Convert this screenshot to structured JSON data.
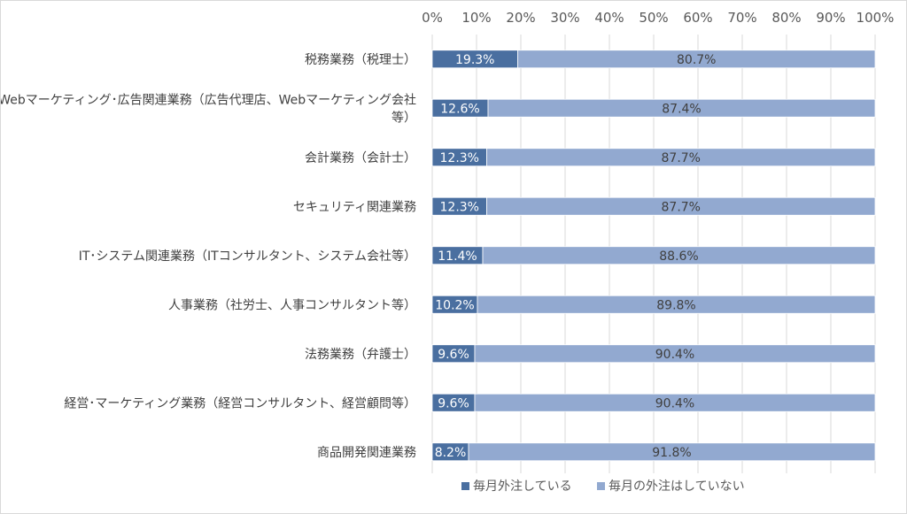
{
  "chart_data": {
    "type": "bar",
    "orientation": "horizontal",
    "stacked": "percent",
    "categories": [
      "税務業務（税理士）",
      "Webマーケティング･広告関連業務（広告代理店、Webマーケティング会社等）",
      "会計業務（会計士）",
      "セキュリティ関連業務",
      "IT･システム関連業務（ITコンサルタント、システム会社等）",
      "人事業務（社労士、人事コンサルタント等）",
      "法務業務（弁護士）",
      "経営･マーケティング業務（経営コンサルタント、経営顧問等）",
      "商品開発関連業務"
    ],
    "category_lines": [
      [
        "税務業務（税理士）"
      ],
      [
        "Webマーケティング･広告関連業務（広告代理店、Webマーケティング会社",
        "等）"
      ],
      [
        "会計業務（会計士）"
      ],
      [
        "セキュリティ関連業務"
      ],
      [
        "IT･システム関連業務（ITコンサルタント、システム会社等）"
      ],
      [
        "人事業務（社労士、人事コンサルタント等）"
      ],
      [
        "法務業務（弁護士）"
      ],
      [
        "経営･マーケティング業務（経営コンサルタント、経営顧問等）"
      ],
      [
        "商品開発関連業務"
      ]
    ],
    "series": [
      {
        "name": "毎月外注している",
        "color": "#4a6fa0",
        "values": [
          19.3,
          12.6,
          12.3,
          12.3,
          11.4,
          10.2,
          9.6,
          9.6,
          8.2
        ],
        "labels": [
          "19.3%",
          "12.6%",
          "12.3%",
          "12.3%",
          "11.4%",
          "10.2%",
          "9.6%",
          "9.6%",
          "8.2%"
        ],
        "label_color": "#ffffff"
      },
      {
        "name": "毎月の外注はしていない",
        "color": "#92a9d0",
        "values": [
          80.7,
          87.4,
          87.7,
          87.7,
          88.6,
          89.8,
          90.4,
          90.4,
          91.8
        ],
        "labels": [
          "80.7%",
          "87.4%",
          "87.7%",
          "87.7%",
          "88.6%",
          "89.8%",
          "90.4%",
          "90.4%",
          "91.8%"
        ],
        "label_color": "#404040"
      }
    ],
    "xlim": [
      0,
      100
    ],
    "x_ticks": [
      "0%",
      "10%",
      "20%",
      "30%",
      "40%",
      "50%",
      "60%",
      "70%",
      "80%",
      "90%",
      "100%"
    ],
    "x_axis_position": "top",
    "grid": true,
    "legend_position": "bottom",
    "colors": {
      "grid": "#d9d9d9",
      "text": "#404040"
    }
  }
}
